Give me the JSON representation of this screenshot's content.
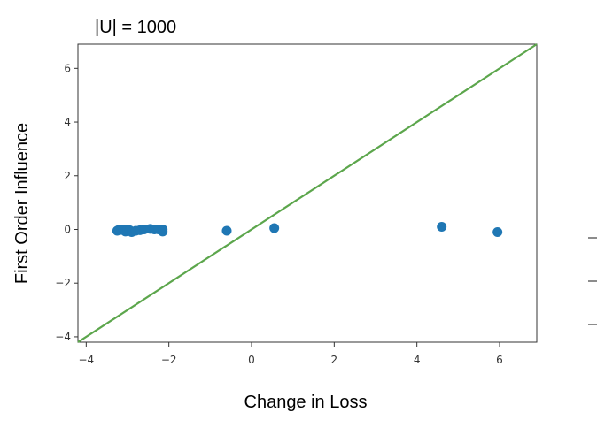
{
  "chart_data": {
    "type": "scatter",
    "title": "|U| = 1000",
    "xlabel": "Change in Loss",
    "ylabel": "First Order Influence",
    "xlim": [
      -4.2,
      6.9
    ],
    "ylim": [
      -4.2,
      6.9
    ],
    "xticks": [
      -4,
      -2,
      0,
      2,
      4,
      6
    ],
    "yticks": [
      -4,
      -2,
      0,
      2,
      4,
      6
    ],
    "xtick_labels": [
      "−4",
      "−2",
      "0",
      "2",
      "4",
      "6"
    ],
    "ytick_labels": [
      "−4",
      "−2",
      "0",
      "2",
      "4",
      "6"
    ],
    "grid": false,
    "series": [
      {
        "marker_color": "#1f77b4",
        "points": [
          [
            -3.25,
            -0.05
          ],
          [
            -3.2,
            0.0
          ],
          [
            -3.15,
            -0.02
          ],
          [
            -3.1,
            0.0
          ],
          [
            -3.05,
            -0.08
          ],
          [
            -3.0,
            0.0
          ],
          [
            -2.95,
            -0.03
          ],
          [
            -2.9,
            -0.1
          ],
          [
            -2.8,
            -0.05
          ],
          [
            -2.7,
            -0.03
          ],
          [
            -2.6,
            0.0
          ],
          [
            -2.45,
            0.02
          ],
          [
            -2.35,
            0.0
          ],
          [
            -2.25,
            0.0
          ],
          [
            -2.15,
            0.0
          ],
          [
            -2.15,
            -0.08
          ],
          [
            -0.6,
            -0.05
          ],
          [
            0.55,
            0.05
          ],
          [
            4.6,
            0.1
          ],
          [
            5.95,
            -0.1
          ]
        ]
      }
    ],
    "reference_line": {
      "from": [
        -4.2,
        -4.2
      ],
      "to": [
        6.9,
        6.9
      ],
      "color": "#5ca64c"
    }
  }
}
